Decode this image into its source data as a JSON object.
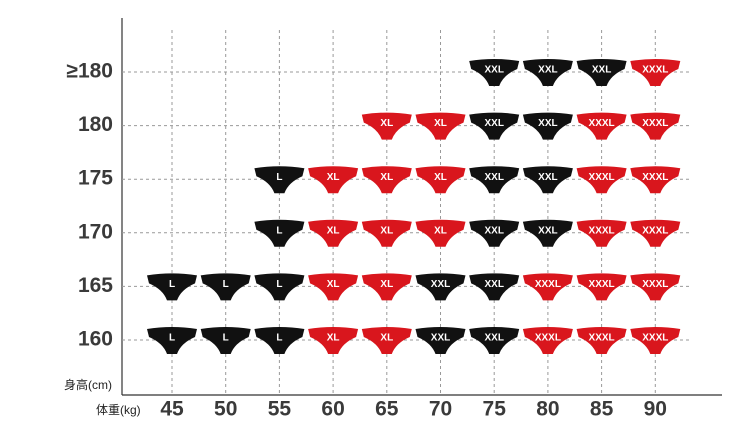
{
  "chart_data": {
    "type": "size-grid",
    "x_label": "体重(kg)",
    "y_label": "身高(cm)",
    "categories": [
      "45",
      "50",
      "55",
      "60",
      "65",
      "70",
      "75",
      "80",
      "85",
      "90"
    ],
    "rows": [
      "≥180",
      "180",
      "175",
      "170",
      "165",
      "160"
    ],
    "size_colors": {
      "L": "#111111",
      "XL": "#d9161d",
      "XXL": "#111111",
      "XXXL": "#d9161d"
    },
    "grid": true,
    "cells": [
      [
        null,
        null,
        null,
        null,
        null,
        null,
        "XXL",
        "XXL",
        "XXL",
        "XXXL"
      ],
      [
        null,
        null,
        null,
        null,
        "XL",
        "XL",
        "XXL",
        "XXL",
        "XXXL",
        "XXXL"
      ],
      [
        null,
        null,
        "L",
        "XL",
        "XL",
        "XL",
        "XXL",
        "XXL",
        "XXXL",
        "XXXL"
      ],
      [
        null,
        null,
        "L",
        "XL",
        "XL",
        "XL",
        "XXL",
        "XXL",
        "XXXL",
        "XXXL"
      ],
      [
        "L",
        "L",
        "L",
        "XL",
        "XL",
        "XXL",
        "XXL",
        "XXXL",
        "XXXL",
        "XXXL"
      ],
      [
        "L",
        "L",
        "L",
        "XL",
        "XL",
        "XXL",
        "XXL",
        "XXXL",
        "XXXL",
        "XXXL"
      ]
    ]
  }
}
